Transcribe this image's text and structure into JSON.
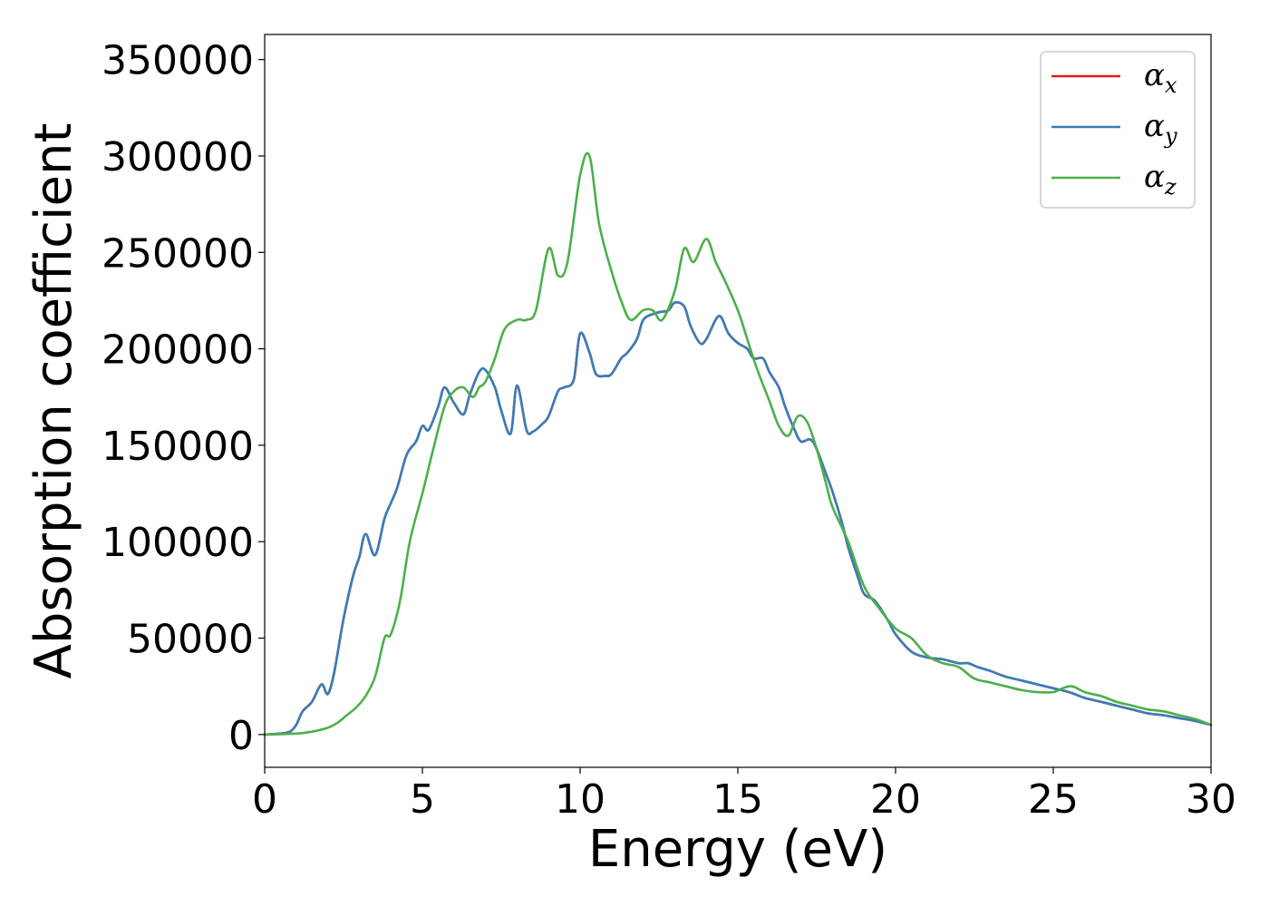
{
  "chart_data": {
    "type": "line",
    "title": "",
    "xlabel": "Energy (eV)",
    "ylabel": "Absorption coefficient",
    "xlim": [
      0,
      30
    ],
    "ylim": [
      -17000,
      363000
    ],
    "xticks": [
      0,
      5,
      10,
      15,
      20,
      25,
      30
    ],
    "yticks": [
      0,
      50000,
      100000,
      150000,
      200000,
      250000,
      300000,
      350000
    ],
    "xtick_labels": [
      "0",
      "5",
      "10",
      "15",
      "20",
      "25",
      "30"
    ],
    "ytick_labels": [
      "0",
      "50000",
      "100000",
      "150000",
      "200000",
      "250000",
      "300000",
      "350000"
    ],
    "grid": false,
    "legend_position": "top-right",
    "legend": [
      {
        "symbol": "α",
        "sub": "x",
        "color": "#e41a1c"
      },
      {
        "symbol": "α",
        "sub": "y",
        "color": "#377eb8"
      },
      {
        "symbol": "α",
        "sub": "z",
        "color": "#4daf4a"
      }
    ],
    "series": [
      {
        "name": "αx",
        "color": "#e41a1c",
        "x": [
          0,
          0.5,
          0.8,
          1.0,
          1.2,
          1.5,
          1.8,
          2.0,
          2.2,
          2.5,
          2.8,
          3.0,
          3.2,
          3.5,
          3.8,
          4.0,
          4.2,
          4.5,
          4.8,
          5.0,
          5.2,
          5.5,
          5.7,
          6.0,
          6.3,
          6.5,
          6.8,
          7.0,
          7.3,
          7.5,
          7.8,
          8.0,
          8.3,
          8.5,
          8.8,
          9.0,
          9.3,
          9.5,
          9.8,
          10.0,
          10.3,
          10.5,
          10.8,
          11.0,
          11.3,
          11.5,
          11.8,
          12.0,
          12.3,
          12.5,
          12.8,
          13.0,
          13.3,
          13.5,
          13.8,
          14.0,
          14.4,
          14.7,
          15.0,
          15.3,
          15.5,
          15.8,
          16.0,
          16.3,
          16.5,
          16.8,
          17.0,
          17.3,
          17.5,
          17.8,
          18.0,
          18.3,
          18.5,
          18.8,
          19.0,
          19.3,
          19.5,
          19.8,
          20.0,
          20.5,
          21.0,
          21.5,
          22.0,
          22.3,
          22.6,
          23.0,
          23.5,
          24.0,
          24.5,
          25.0,
          25.5,
          26.0,
          26.5,
          27.0,
          27.5,
          28.0,
          28.5,
          29.0,
          29.5,
          30.0
        ],
        "values": [
          0,
          500,
          1500,
          5000,
          12000,
          17000,
          26000,
          21000,
          32000,
          60000,
          82000,
          92000,
          104000,
          93000,
          112000,
          120000,
          128000,
          145000,
          152000,
          160000,
          158000,
          170000,
          180000,
          172000,
          166000,
          176000,
          188000,
          189000,
          180000,
          168000,
          156000,
          181000,
          158000,
          157000,
          161000,
          165000,
          178000,
          180000,
          184000,
          208000,
          198000,
          187000,
          186000,
          187000,
          195000,
          198000,
          205000,
          215000,
          218000,
          219000,
          220000,
          224000,
          222000,
          212000,
          203000,
          205000,
          217000,
          208000,
          203000,
          200000,
          195000,
          195000,
          188000,
          180000,
          170000,
          158000,
          152000,
          153000,
          148000,
          135000,
          126000,
          110000,
          97000,
          82000,
          73000,
          70000,
          66000,
          58000,
          52000,
          43000,
          40000,
          39000,
          37000,
          37000,
          35000,
          33000,
          30000,
          28000,
          26000,
          24000,
          22000,
          19000,
          17000,
          15000,
          13000,
          11000,
          10000,
          8500,
          7000,
          5000
        ]
      },
      {
        "name": "αy",
        "color": "#377eb8",
        "x": [
          0,
          0.5,
          0.8,
          1.0,
          1.2,
          1.5,
          1.8,
          2.0,
          2.2,
          2.5,
          2.8,
          3.0,
          3.2,
          3.5,
          3.8,
          4.0,
          4.2,
          4.5,
          4.8,
          5.0,
          5.2,
          5.5,
          5.7,
          6.0,
          6.3,
          6.5,
          6.8,
          7.0,
          7.3,
          7.5,
          7.8,
          8.0,
          8.3,
          8.5,
          8.8,
          9.0,
          9.3,
          9.5,
          9.8,
          10.0,
          10.3,
          10.5,
          10.8,
          11.0,
          11.3,
          11.5,
          11.8,
          12.0,
          12.3,
          12.5,
          12.8,
          13.0,
          13.3,
          13.5,
          13.8,
          14.0,
          14.4,
          14.7,
          15.0,
          15.3,
          15.5,
          15.8,
          16.0,
          16.3,
          16.5,
          16.8,
          17.0,
          17.3,
          17.5,
          17.8,
          18.0,
          18.3,
          18.5,
          18.8,
          19.0,
          19.3,
          19.5,
          19.8,
          20.0,
          20.5,
          21.0,
          21.5,
          22.0,
          22.3,
          22.6,
          23.0,
          23.5,
          24.0,
          24.5,
          25.0,
          25.5,
          26.0,
          26.5,
          27.0,
          27.5,
          28.0,
          28.5,
          29.0,
          29.5,
          30.0
        ],
        "values": [
          0,
          500,
          1500,
          5000,
          12000,
          17000,
          26000,
          21000,
          32000,
          60000,
          82000,
          92000,
          104000,
          93000,
          112000,
          120000,
          128000,
          145000,
          152000,
          160000,
          158000,
          170000,
          180000,
          172000,
          166000,
          176000,
          188000,
          189000,
          180000,
          168000,
          156000,
          181000,
          158000,
          157000,
          161000,
          165000,
          178000,
          180000,
          184000,
          208000,
          198000,
          187000,
          186000,
          187000,
          195000,
          198000,
          205000,
          215000,
          218000,
          219000,
          220000,
          224000,
          222000,
          212000,
          203000,
          205000,
          217000,
          208000,
          203000,
          200000,
          195000,
          195000,
          188000,
          180000,
          170000,
          158000,
          152000,
          153000,
          148000,
          135000,
          126000,
          110000,
          97000,
          82000,
          73000,
          70000,
          66000,
          58000,
          52000,
          43000,
          40000,
          39000,
          37000,
          37000,
          35000,
          33000,
          30000,
          28000,
          26000,
          24000,
          22000,
          19000,
          17000,
          15000,
          13000,
          11000,
          10000,
          8500,
          7000,
          5000
        ]
      },
      {
        "name": "αz",
        "color": "#4daf4a",
        "x": [
          0,
          1.0,
          1.5,
          2.0,
          2.3,
          2.6,
          2.9,
          3.2,
          3.5,
          3.8,
          4.0,
          4.3,
          4.6,
          5.0,
          5.3,
          5.7,
          6.0,
          6.3,
          6.6,
          6.8,
          7.0,
          7.3,
          7.6,
          8.0,
          8.3,
          8.6,
          9.0,
          9.3,
          9.6,
          10.0,
          10.3,
          10.6,
          11.0,
          11.3,
          11.6,
          12.0,
          12.3,
          12.6,
          13.0,
          13.3,
          13.6,
          14.0,
          14.3,
          14.6,
          15.0,
          15.3,
          15.6,
          16.0,
          16.3,
          16.6,
          16.9,
          17.2,
          17.5,
          17.8,
          18.0,
          18.5,
          19.0,
          19.5,
          20.0,
          20.5,
          21.0,
          21.5,
          22.0,
          22.5,
          23.0,
          23.5,
          24.0,
          24.5,
          25.0,
          25.3,
          25.6,
          26.0,
          26.5,
          27.0,
          27.5,
          28.0,
          28.5,
          29.0,
          29.5,
          30.0
        ],
        "values": [
          0,
          500,
          1500,
          3500,
          6000,
          10000,
          14000,
          20000,
          30000,
          50000,
          52000,
          70000,
          100000,
          125000,
          145000,
          170000,
          178000,
          180000,
          175000,
          180000,
          183000,
          195000,
          210000,
          215000,
          215000,
          220000,
          252000,
          238000,
          245000,
          290000,
          300000,
          265000,
          240000,
          225000,
          215000,
          220000,
          220000,
          215000,
          230000,
          252000,
          245000,
          257000,
          245000,
          235000,
          220000,
          205000,
          190000,
          173000,
          160000,
          155000,
          165000,
          162000,
          148000,
          130000,
          118000,
          100000,
          77000,
          65000,
          55000,
          50000,
          41000,
          37000,
          35000,
          29000,
          27000,
          25000,
          23000,
          22000,
          22000,
          24000,
          25000,
          22000,
          20000,
          17000,
          15000,
          13000,
          12000,
          10000,
          8000,
          5000
        ]
      }
    ]
  }
}
